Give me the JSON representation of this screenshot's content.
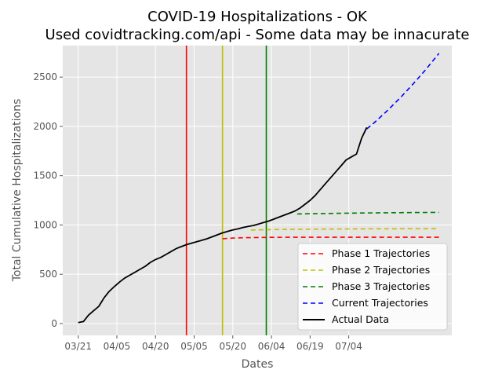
{
  "chart_data": {
    "type": "line",
    "title": "COVID-19 Hospitalizations - OK",
    "subtitle": "Used covidtracking.com/api - Some data may be innacurate",
    "xlabel": "Dates",
    "ylabel": "Total Cumulative Hospitalizations",
    "x_ticks": [
      "03/21",
      "04/05",
      "04/20",
      "05/05",
      "05/20",
      "06/04",
      "06/19",
      "07/04"
    ],
    "y_ticks": [
      0,
      500,
      1000,
      1500,
      2000,
      2500
    ],
    "xlim": [
      -6,
      145
    ],
    "ylim": [
      -120,
      2820
    ],
    "grid": true,
    "legend_position": "lower-right",
    "phase_lines": [
      {
        "day": 42,
        "color": "#ff0000"
      },
      {
        "day": 56,
        "color": "#bfbf00"
      },
      {
        "day": 73,
        "color": "#008000"
      }
    ],
    "series": [
      {
        "name": "Phase 1 Trajectories",
        "color": "#ff0000",
        "style": "dashed",
        "x": [
          56,
          60,
          65,
          70,
          75,
          80,
          90,
          100,
          110,
          120,
          130,
          140
        ],
        "y": [
          860,
          867,
          871,
          873,
          874,
          875,
          875,
          875,
          875,
          875,
          875,
          875
        ]
      },
      {
        "name": "Phase 2 Trajectories",
        "color": "#bfbf00",
        "style": "dashed",
        "x": [
          67,
          70,
          75,
          80,
          90,
          100,
          110,
          120,
          130,
          140
        ],
        "y": [
          948,
          950,
          953,
          955,
          957,
          959,
          960,
          961,
          962,
          963
        ]
      },
      {
        "name": "Phase 3 Trajectories",
        "color": "#008000",
        "style": "dashed",
        "x": [
          85,
          90,
          95,
          100,
          110,
          120,
          130,
          140
        ],
        "y": [
          1112,
          1114,
          1116,
          1118,
          1121,
          1124,
          1126,
          1128
        ]
      },
      {
        "name": "Current Trajectories",
        "color": "#0000ff",
        "style": "dashed",
        "x": [
          112,
          115,
          120,
          125,
          130,
          135,
          140
        ],
        "y": [
          1975,
          2040,
          2160,
          2290,
          2430,
          2580,
          2740
        ]
      },
      {
        "name": "Actual Data",
        "color": "#000000",
        "style": "solid",
        "x": [
          0,
          2,
          4,
          6,
          8,
          10,
          12,
          14,
          16,
          18,
          20,
          22,
          24,
          26,
          28,
          30,
          32,
          34,
          36,
          38,
          40,
          42,
          44,
          46,
          48,
          50,
          52,
          54,
          56,
          58,
          60,
          62,
          64,
          66,
          68,
          70,
          72,
          74,
          76,
          78,
          80,
          82,
          84,
          86,
          88,
          90,
          92,
          94,
          96,
          98,
          100,
          102,
          104,
          106,
          108,
          110,
          112
        ],
        "y": [
          10,
          20,
          85,
          130,
          175,
          260,
          325,
          375,
          420,
          460,
          490,
          520,
          550,
          580,
          620,
          650,
          670,
          700,
          730,
          760,
          780,
          800,
          815,
          830,
          845,
          860,
          880,
          900,
          920,
          935,
          950,
          960,
          975,
          985,
          995,
          1010,
          1025,
          1040,
          1060,
          1080,
          1100,
          1120,
          1140,
          1170,
          1210,
          1250,
          1300,
          1360,
          1420,
          1480,
          1540,
          1600,
          1660,
          1690,
          1720,
          1880,
          1990
        ]
      }
    ]
  }
}
